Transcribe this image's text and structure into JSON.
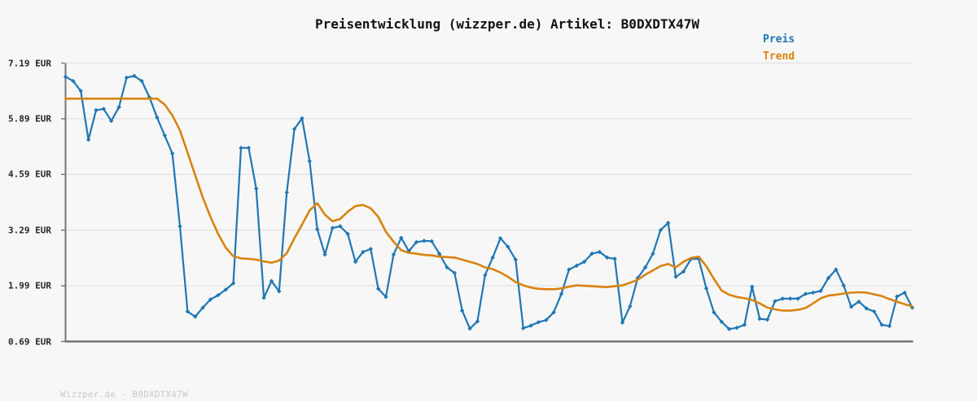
{
  "footer": {
    "text": "Wizzper.de - B0DXDTX47W"
  },
  "chart_data": {
    "type": "line",
    "title": "Preisentwicklung (wizzper.de) Artikel: B0DXDTX47W",
    "xlabel": "",
    "ylabel": "",
    "x_tick_labels": "none",
    "ylim": [
      0.69,
      7.19
    ],
    "grid": "horizontal",
    "legend_position": "top-right",
    "currency": "EUR",
    "y_ticks": [
      {
        "label": "7.19 EUR",
        "value": 7.19
      },
      {
        "label": "5.89 EUR",
        "value": 5.89
      },
      {
        "label": "4.59 EUR",
        "value": 4.59
      },
      {
        "label": "3.29 EUR",
        "value": 3.29
      },
      {
        "label": "1.99 EUR",
        "value": 1.99
      },
      {
        "label": "0.69 EUR",
        "value": 0.69
      }
    ],
    "series": [
      {
        "name": "Preis",
        "color": "#1f77b4",
        "marker": "diamond",
        "values": [
          6.87,
          6.77,
          6.54,
          5.4,
          6.09,
          6.12,
          5.84,
          6.16,
          6.85,
          6.89,
          6.77,
          6.39,
          5.92,
          5.5,
          5.08,
          3.38,
          1.39,
          1.27,
          1.48,
          1.67,
          1.77,
          1.9,
          2.05,
          5.21,
          5.21,
          4.26,
          1.71,
          2.1,
          1.86,
          4.17,
          5.65,
          5.9,
          4.9,
          3.31,
          2.72,
          3.34,
          3.38,
          3.2,
          2.55,
          2.78,
          2.85,
          1.92,
          1.73,
          2.72,
          3.11,
          2.8,
          3.01,
          3.04,
          3.03,
          2.74,
          2.42,
          2.29,
          1.41,
          0.99,
          1.16,
          2.24,
          2.65,
          3.1,
          2.9,
          2.6,
          1.0,
          1.06,
          1.14,
          1.19,
          1.37,
          1.8,
          2.37,
          2.46,
          2.55,
          2.74,
          2.78,
          2.65,
          2.62,
          1.13,
          1.51,
          2.17,
          2.42,
          2.74,
          3.29,
          3.46,
          2.2,
          2.32,
          2.62,
          2.62,
          1.93,
          1.37,
          1.15,
          0.98,
          1.01,
          1.08,
          1.97,
          1.22,
          1.2,
          1.63,
          1.69,
          1.69,
          1.69,
          1.8,
          1.83,
          1.87,
          2.17,
          2.37,
          2.0,
          1.5,
          1.62,
          1.46,
          1.39,
          1.08,
          1.05,
          1.74,
          1.83,
          1.48
        ]
      },
      {
        "name": "Trend",
        "color": "#d8830e",
        "marker": "none",
        "values": [
          6.36,
          6.36,
          6.36,
          6.36,
          6.36,
          6.36,
          6.36,
          6.36,
          6.36,
          6.36,
          6.36,
          6.36,
          6.36,
          6.22,
          5.97,
          5.62,
          5.1,
          4.57,
          4.05,
          3.6,
          3.2,
          2.88,
          2.68,
          2.63,
          2.62,
          2.6,
          2.56,
          2.53,
          2.58,
          2.75,
          3.1,
          3.42,
          3.75,
          3.92,
          3.65,
          3.5,
          3.55,
          3.72,
          3.85,
          3.88,
          3.8,
          3.6,
          3.25,
          3.02,
          2.82,
          2.76,
          2.74,
          2.71,
          2.7,
          2.67,
          2.66,
          2.65,
          2.6,
          2.55,
          2.5,
          2.42,
          2.38,
          2.3,
          2.2,
          2.08,
          2.0,
          1.95,
          1.92,
          1.91,
          1.91,
          1.93,
          1.97,
          2.0,
          1.99,
          1.98,
          1.97,
          1.96,
          1.98,
          2.0,
          2.06,
          2.13,
          2.25,
          2.35,
          2.45,
          2.5,
          2.42,
          2.55,
          2.64,
          2.67,
          2.45,
          2.15,
          1.88,
          1.78,
          1.73,
          1.7,
          1.66,
          1.58,
          1.48,
          1.44,
          1.41,
          1.41,
          1.43,
          1.47,
          1.58,
          1.7,
          1.76,
          1.78,
          1.81,
          1.83,
          1.84,
          1.83,
          1.79,
          1.75,
          1.68,
          1.62,
          1.56,
          1.51
        ]
      }
    ]
  }
}
